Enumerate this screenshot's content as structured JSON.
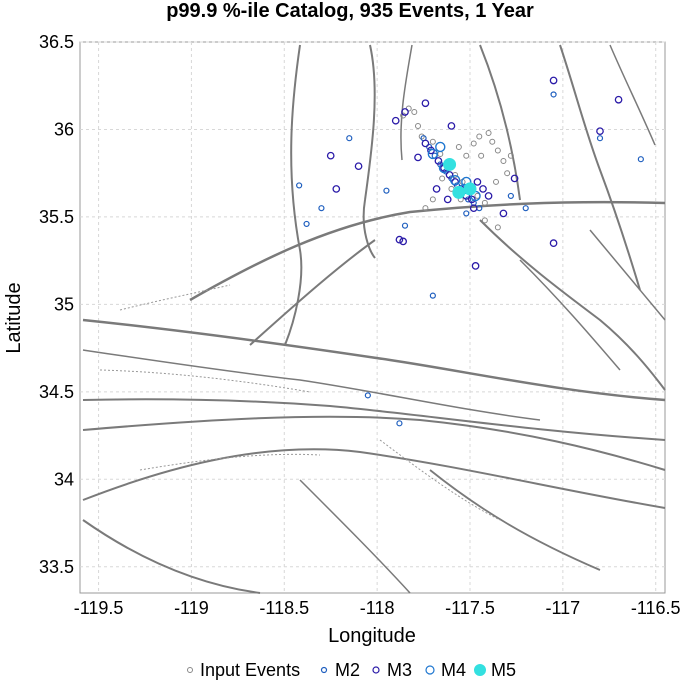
{
  "chart_data": {
    "type": "scatter",
    "title": "p99.9 %-ile Catalog, 935 Events, 1 Year",
    "xlabel": "Longitude",
    "ylabel": "Latitude",
    "xlim": [
      -119.6,
      -116.45
    ],
    "ylim": [
      33.35,
      36.5
    ],
    "xticks": [
      -119.5,
      -119,
      -118.5,
      -118,
      -117.5,
      -117,
      -116.5
    ],
    "xtick_labels": [
      "-119.5",
      "-119",
      "-118.5",
      "-118",
      "-117.5",
      "-117",
      "-116.5"
    ],
    "yticks": [
      33.5,
      34,
      34.5,
      35,
      35.5,
      36,
      36.5
    ],
    "ytick_labels": [
      "33.5",
      "34",
      "34.5",
      "35",
      "35.5",
      "36",
      "36.5"
    ],
    "grid": true,
    "legend_position": "bottom",
    "colors": {
      "input": "#888888",
      "m2": "#1f5fbf",
      "m3": "#2a1aa8",
      "m4": "#1f77d0",
      "m5": "#33e0e0",
      "fault": "#7a7a7a"
    },
    "series": [
      {
        "name": "Input Events",
        "points": [
          [
            -117.83,
            36.12
          ],
          [
            -117.86,
            36.08
          ],
          [
            -117.8,
            36.1
          ],
          [
            -117.78,
            36.02
          ],
          [
            -117.76,
            35.96
          ],
          [
            -117.7,
            35.93
          ],
          [
            -117.66,
            35.86
          ],
          [
            -117.62,
            35.8
          ],
          [
            -117.58,
            35.74
          ],
          [
            -117.54,
            35.7
          ],
          [
            -117.5,
            35.66
          ],
          [
            -117.46,
            35.62
          ],
          [
            -117.42,
            35.58
          ],
          [
            -117.55,
            35.6
          ],
          [
            -117.6,
            35.66
          ],
          [
            -117.65,
            35.72
          ],
          [
            -117.45,
            35.96
          ],
          [
            -117.4,
            35.98
          ],
          [
            -117.38,
            35.93
          ],
          [
            -117.35,
            35.88
          ],
          [
            -117.32,
            35.82
          ],
          [
            -117.3,
            35.75
          ],
          [
            -117.36,
            35.7
          ],
          [
            -117.28,
            35.85
          ],
          [
            -117.42,
            35.48
          ],
          [
            -117.35,
            35.44
          ],
          [
            -117.74,
            35.55
          ],
          [
            -117.7,
            35.6
          ],
          [
            -117.56,
            35.9
          ],
          [
            -117.52,
            35.85
          ],
          [
            -117.48,
            35.92
          ],
          [
            -117.44,
            35.85
          ]
        ]
      },
      {
        "name": "M2",
        "points": [
          [
            -117.72,
            35.9
          ],
          [
            -117.69,
            35.85
          ],
          [
            -117.66,
            35.8
          ],
          [
            -117.63,
            35.76
          ],
          [
            -117.6,
            35.72
          ],
          [
            -117.57,
            35.68
          ],
          [
            -117.54,
            35.64
          ],
          [
            -117.51,
            35.6
          ],
          [
            -117.48,
            35.58
          ],
          [
            -117.45,
            35.55
          ],
          [
            -117.75,
            35.95
          ],
          [
            -117.52,
            35.52
          ],
          [
            -117.28,
            35.62
          ],
          [
            -117.2,
            35.55
          ],
          [
            -118.15,
            35.95
          ],
          [
            -117.95,
            35.65
          ],
          [
            -118.3,
            35.55
          ],
          [
            -117.05,
            36.2
          ],
          [
            -116.8,
            35.95
          ],
          [
            -116.58,
            35.83
          ],
          [
            -117.7,
            35.05
          ],
          [
            -118.05,
            34.48
          ],
          [
            -117.88,
            34.32
          ],
          [
            -118.42,
            35.68
          ],
          [
            -118.38,
            35.46
          ],
          [
            -117.85,
            35.45
          ]
        ]
      },
      {
        "name": "M3",
        "points": [
          [
            -117.71,
            35.88
          ],
          [
            -117.67,
            35.82
          ],
          [
            -117.64,
            35.78
          ],
          [
            -117.61,
            35.74
          ],
          [
            -117.58,
            35.7
          ],
          [
            -117.55,
            35.66
          ],
          [
            -117.52,
            35.62
          ],
          [
            -117.49,
            35.6
          ],
          [
            -117.74,
            35.92
          ],
          [
            -117.78,
            35.84
          ],
          [
            -117.46,
            35.7
          ],
          [
            -117.43,
            35.66
          ],
          [
            -117.4,
            35.62
          ],
          [
            -117.68,
            35.66
          ],
          [
            -117.62,
            35.6
          ],
          [
            -117.48,
            35.55
          ],
          [
            -117.85,
            36.1
          ],
          [
            -117.9,
            36.05
          ],
          [
            -117.74,
            36.15
          ],
          [
            -117.6,
            36.02
          ],
          [
            -117.88,
            35.37
          ],
          [
            -117.47,
            35.22
          ],
          [
            -117.05,
            35.35
          ],
          [
            -117.05,
            36.28
          ],
          [
            -116.7,
            36.17
          ],
          [
            -116.8,
            35.99
          ],
          [
            -118.25,
            35.85
          ],
          [
            -118.1,
            35.79
          ],
          [
            -118.22,
            35.66
          ],
          [
            -117.86,
            35.36
          ],
          [
            -117.26,
            35.72
          ],
          [
            -117.32,
            35.52
          ]
        ]
      },
      {
        "name": "M4",
        "points": [
          [
            -117.7,
            35.86
          ],
          [
            -117.64,
            35.78
          ],
          [
            -117.58,
            35.71
          ],
          [
            -117.53,
            35.66
          ],
          [
            -117.47,
            35.62
          ],
          [
            -117.66,
            35.9
          ],
          [
            -117.52,
            35.7
          ]
        ]
      },
      {
        "name": "M5",
        "points": [
          [
            -117.61,
            35.8
          ],
          [
            -117.56,
            35.64
          ],
          [
            -117.5,
            35.66
          ]
        ]
      }
    ]
  },
  "legend": {
    "input_label": "Input Events",
    "m2_label": "M2",
    "m3_label": "M3",
    "m4_label": "M4",
    "m5_label": "M5"
  }
}
